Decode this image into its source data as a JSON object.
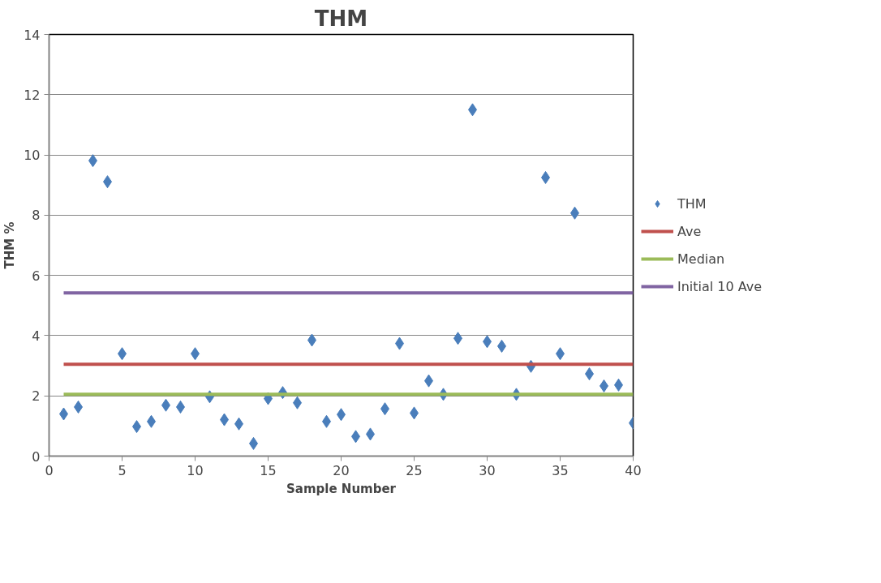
{
  "chart_data": {
    "type": "scatter",
    "title": "THM",
    "xlabel": "Sample Number",
    "ylabel": "THM %",
    "xlim": [
      0,
      40
    ],
    "xticks": [
      0,
      5,
      10,
      15,
      20,
      25,
      30,
      35,
      40
    ],
    "ylim": [
      0,
      14
    ],
    "yticks": [
      0,
      2,
      4,
      6,
      8,
      10,
      12,
      14
    ],
    "grid": "y",
    "legend": "right",
    "marker": "diamond",
    "series": [
      {
        "name": "THM",
        "color": "#4a7ebb",
        "x": [
          1,
          2,
          3,
          4,
          5,
          6,
          7,
          8,
          9,
          10,
          11,
          12,
          13,
          14,
          15,
          16,
          17,
          18,
          19,
          20,
          21,
          22,
          23,
          24,
          25,
          26,
          27,
          28,
          29,
          30,
          31,
          32,
          33,
          34,
          35,
          36,
          37,
          38,
          39,
          40
        ],
        "values": [
          1.4,
          1.63,
          9.81,
          9.11,
          3.4,
          0.98,
          1.15,
          1.69,
          1.63,
          3.4,
          1.97,
          1.21,
          1.07,
          0.42,
          1.91,
          2.11,
          1.77,
          3.85,
          1.15,
          1.38,
          0.65,
          0.73,
          1.57,
          3.74,
          1.43,
          2.5,
          2.05,
          3.91,
          11.5,
          3.8,
          3.65,
          2.05,
          2.98,
          9.25,
          3.4,
          8.07,
          2.73,
          2.33,
          2.36,
          1.1
        ]
      },
      {
        "name": "Ave",
        "type": "line",
        "color": "#c0504d",
        "marker": "none",
        "x": [
          1,
          40
        ],
        "values": [
          3.05,
          3.05
        ]
      },
      {
        "name": "Median",
        "type": "line",
        "color": "#9bbb59",
        "marker": "none",
        "x": [
          1,
          40
        ],
        "values": [
          2.05,
          2.05
        ]
      },
      {
        "name": "Initial 10 Ave",
        "type": "line",
        "color": "#8064a2",
        "marker": "none",
        "x": [
          1,
          40
        ],
        "values": [
          5.42,
          5.42
        ]
      }
    ]
  }
}
